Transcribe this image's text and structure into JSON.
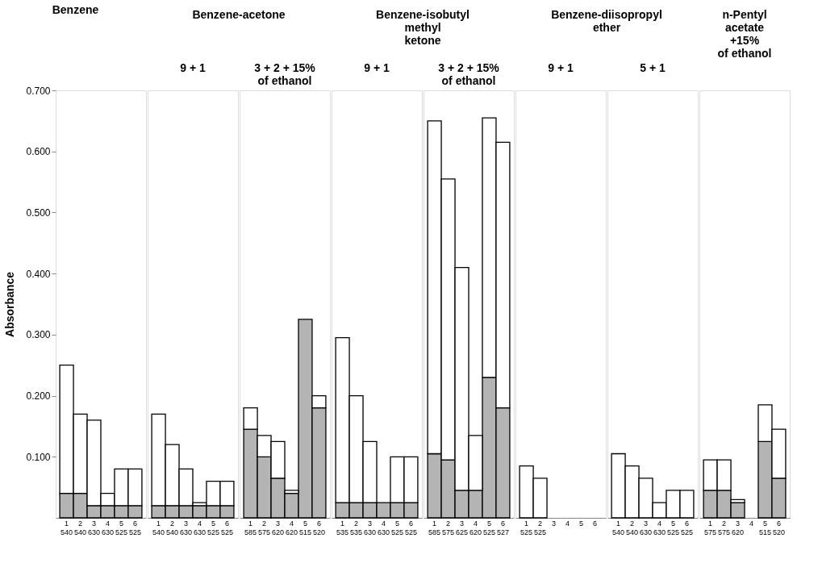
{
  "chart_data": [
    {
      "type": "bar",
      "title": "Benzene",
      "ylabel": "Absorbance",
      "stacked": true,
      "ylim": [
        0,
        0.7
      ],
      "yticks": [
        {
          "value": 0.1,
          "label": "0.100"
        },
        {
          "value": 0.2,
          "label": "0.200"
        },
        {
          "value": 0.3,
          "label": "0.300"
        },
        {
          "value": 0.4,
          "label": "0.400"
        },
        {
          "value": 0.5,
          "label": "0.500"
        },
        {
          "value": 0.6,
          "label": "0.600"
        },
        {
          "value": 0.7,
          "label": "0.700"
        }
      ],
      "categories": [
        "1\n540",
        "2\n540",
        "3\n630",
        "4\n630",
        "5\n525",
        "6\n525"
      ],
      "series": [
        {
          "color": "#b4b4b4",
          "values": [
            0.04,
            0.04,
            0.02,
            0.02,
            0.02,
            0.02
          ]
        },
        {
          "color": "#ffffff",
          "values": [
            0.21,
            0.13,
            0.14,
            0.02,
            0.06,
            0.06
          ]
        }
      ]
    },
    {
      "type": "bar",
      "title": "Benzene-acetone",
      "subtitle": "9 + 1",
      "stacked": true,
      "ylim": [
        0,
        0.7
      ],
      "tick_labels": "x",
      "categories": [
        "1\n540",
        "2\n540",
        "3\n630",
        "4\n630",
        "5\n525",
        "6\n525"
      ],
      "series": [
        {
          "color": "#b4b4b4",
          "values": [
            0.02,
            0.02,
            0.02,
            0.02,
            0.02,
            0.02
          ]
        },
        {
          "color": "#ffffff",
          "values": [
            0.15,
            0.1,
            0.06,
            0.005,
            0.04,
            0.04
          ]
        }
      ]
    },
    {
      "type": "bar",
      "subtitle": "3 + 2 + 15%\nof ethanol",
      "stacked": true,
      "ylim": [
        0,
        0.7
      ],
      "tick_labels": "x",
      "categories": [
        "1\n585",
        "2\n575",
        "3\n620",
        "4\n620",
        "5\n515",
        "6\n520"
      ],
      "series": [
        {
          "color": "#b4b4b4",
          "values": [
            0.145,
            0.1,
            0.065,
            0.04,
            0.325,
            0.18
          ]
        },
        {
          "color": "#ffffff",
          "values": [
            0.035,
            0.035,
            0.06,
            0.005,
            null,
            0.02
          ]
        }
      ]
    },
    {
      "type": "bar",
      "title": "Benzene-isobutyl\nmethyl\nketone",
      "subtitle": "9 + 1",
      "stacked": true,
      "ylim": [
        0,
        0.7
      ],
      "tick_labels": "x",
      "categories": [
        "1\n535",
        "2\n535",
        "3\n630",
        "4\n630",
        "5\n525",
        "6\n525"
      ],
      "series": [
        {
          "color": "#b4b4b4",
          "values": [
            0.025,
            0.025,
            0.025,
            0.025,
            0.025,
            0.025
          ]
        },
        {
          "color": "#ffffff",
          "values": [
            0.27,
            0.175,
            0.1,
            null,
            0.075,
            0.075
          ]
        }
      ]
    },
    {
      "type": "bar",
      "subtitle": "3 + 2 + 15%\nof ethanol",
      "stacked": true,
      "ylim": [
        0,
        0.7
      ],
      "tick_labels": "x",
      "categories": [
        "1\n585",
        "2\n575",
        "3\n625",
        "4\n620",
        "5\n525",
        "6\n527"
      ],
      "series": [
        {
          "color": "#b4b4b4",
          "values": [
            0.105,
            0.095,
            0.045,
            0.045,
            0.23,
            0.18
          ]
        },
        {
          "color": "#ffffff",
          "values": [
            0.545,
            0.46,
            0.365,
            0.09,
            0.425,
            0.435
          ]
        }
      ]
    },
    {
      "type": "bar",
      "title": "Benzene-diisopropyl\nether",
      "subtitle": "9 + 1",
      "stacked": true,
      "ylim": [
        0,
        0.7
      ],
      "tick_labels": "x",
      "categories": [
        "1\n525",
        "2\n525",
        "3",
        "4",
        "5",
        "6"
      ],
      "series": [
        {
          "color": "#ffffff",
          "values": [
            0.085,
            0.065,
            null,
            null,
            null,
            null
          ]
        }
      ]
    },
    {
      "type": "bar",
      "subtitle": "5 + 1",
      "stacked": true,
      "ylim": [
        0,
        0.7
      ],
      "tick_labels": "x",
      "categories": [
        "1\n540",
        "2\n540",
        "3\n630",
        "4\n630",
        "5\n525",
        "6\n525"
      ],
      "series": [
        {
          "color": "#ffffff",
          "values": [
            0.105,
            0.085,
            0.065,
            0.025,
            0.045,
            0.045
          ]
        }
      ]
    },
    {
      "type": "bar",
      "title": "n-Pentyl\nacetate\n+15%\nof ethanol",
      "stacked": true,
      "ylim": [
        0,
        0.7
      ],
      "tick_labels": "x",
      "categories": [
        "1\n575",
        "2\n575",
        "3\n620",
        "4",
        "5\n515",
        "6\n520"
      ],
      "series": [
        {
          "color": "#b4b4b4",
          "values": [
            0.045,
            0.045,
            0.025,
            null,
            0.125,
            0.065
          ]
        },
        {
          "color": "#ffffff",
          "values": [
            0.05,
            0.05,
            0.005,
            null,
            0.06,
            0.08
          ]
        }
      ]
    }
  ]
}
